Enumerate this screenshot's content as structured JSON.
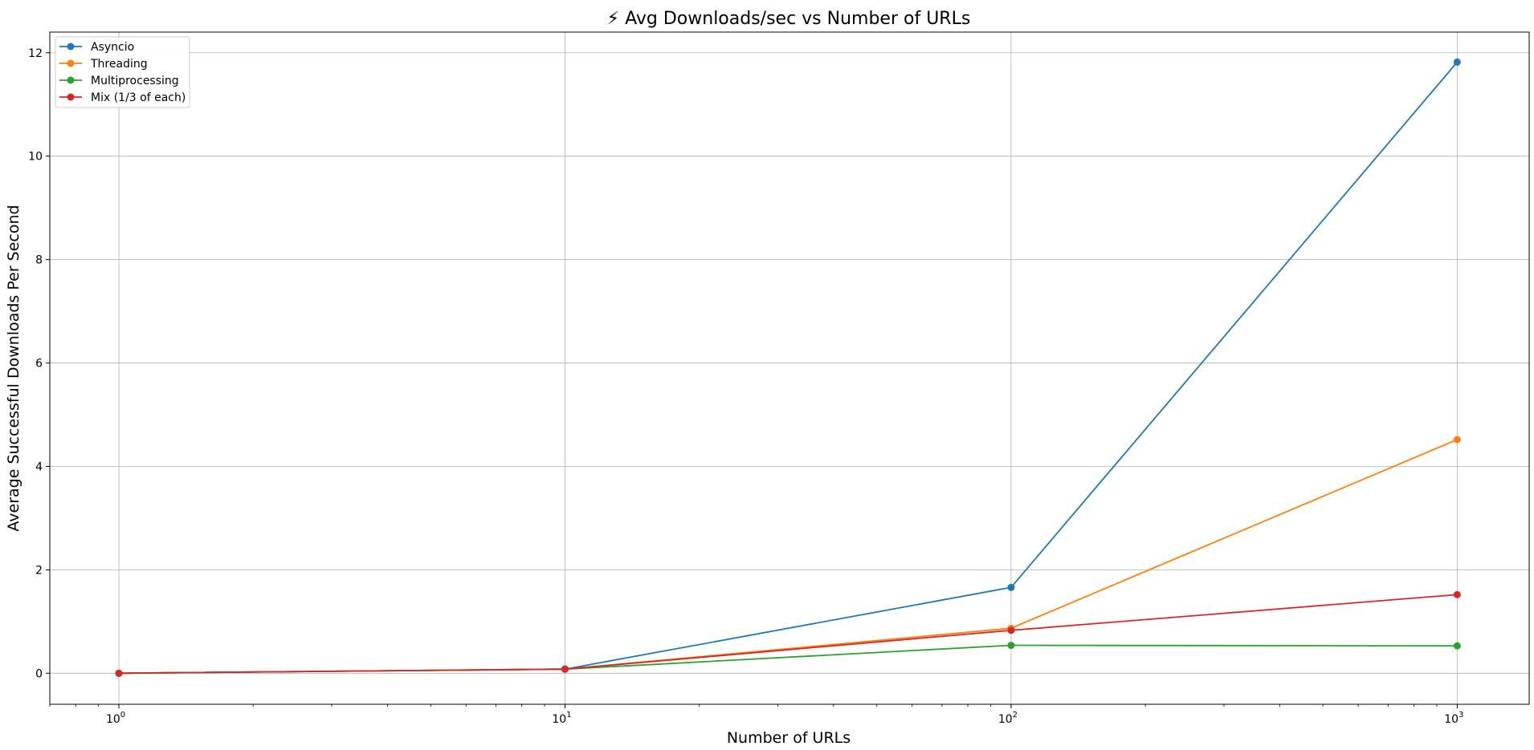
{
  "chart_data": {
    "type": "line",
    "title": "⚡ Avg Downloads/sec vs Number of URLs",
    "xlabel": "Number of URLs",
    "ylabel": "Average Successful Downloads Per Second",
    "xscale": "log",
    "xlim": [
      0.7,
      1450
    ],
    "ylim": [
      -0.6,
      12.4
    ],
    "x": [
      1,
      10,
      100,
      1000
    ],
    "x_ticks": [
      {
        "value": 1,
        "base": "10",
        "exp": "0"
      },
      {
        "value": 10,
        "base": "10",
        "exp": "1"
      },
      {
        "value": 100,
        "base": "10",
        "exp": "2"
      },
      {
        "value": 1000,
        "base": "10",
        "exp": "3"
      }
    ],
    "y_ticks": [
      0,
      2,
      4,
      6,
      8,
      10,
      12
    ],
    "grid": true,
    "legend_position": "top-left",
    "series": [
      {
        "name": "Asyncio",
        "color": "#1f77b4",
        "values": [
          0.0,
          0.08,
          1.66,
          11.82
        ]
      },
      {
        "name": "Threading",
        "color": "#ff7f0e",
        "values": [
          0.0,
          0.08,
          0.87,
          4.52
        ]
      },
      {
        "name": "Multiprocessing",
        "color": "#2ca02c",
        "values": [
          0.0,
          0.08,
          0.54,
          0.53
        ]
      },
      {
        "name": "Mix (1/3 of each)",
        "color": "#d62728",
        "values": [
          0.0,
          0.08,
          0.83,
          1.52
        ]
      }
    ]
  }
}
